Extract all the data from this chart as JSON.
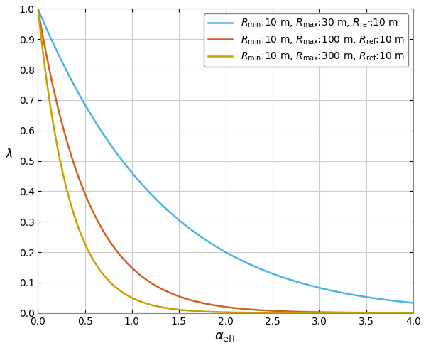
{
  "curves": [
    {
      "R_min": 10,
      "R_max": 30,
      "R_ref": 10,
      "color": "#4db3e6",
      "label": "$R_{\\min}$:10 m, $R_{\\max}$:30 m, $R_{\\mathrm{ref}}$:10 m"
    },
    {
      "R_min": 10,
      "R_max": 100,
      "R_ref": 10,
      "color": "#d45f22",
      "label": "$R_{\\min}$:10 m, $R_{\\max}$:100 m, $R_{\\mathrm{ref}}$:10 m"
    },
    {
      "R_min": 10,
      "R_max": 300,
      "R_ref": 10,
      "color": "#c8a000",
      "label": "$R_{\\min}$:10 m, $R_{\\max}$:300 m, $R_{\\mathrm{ref}}$:10 m"
    }
  ],
  "xlim": [
    0,
    4
  ],
  "ylim": [
    0,
    1
  ],
  "xlabel": "$\\alpha_{\\mathrm{eff}}$",
  "ylabel": "$\\lambda$",
  "grid": true,
  "background_color": "#ffffff",
  "n_points": 500
}
